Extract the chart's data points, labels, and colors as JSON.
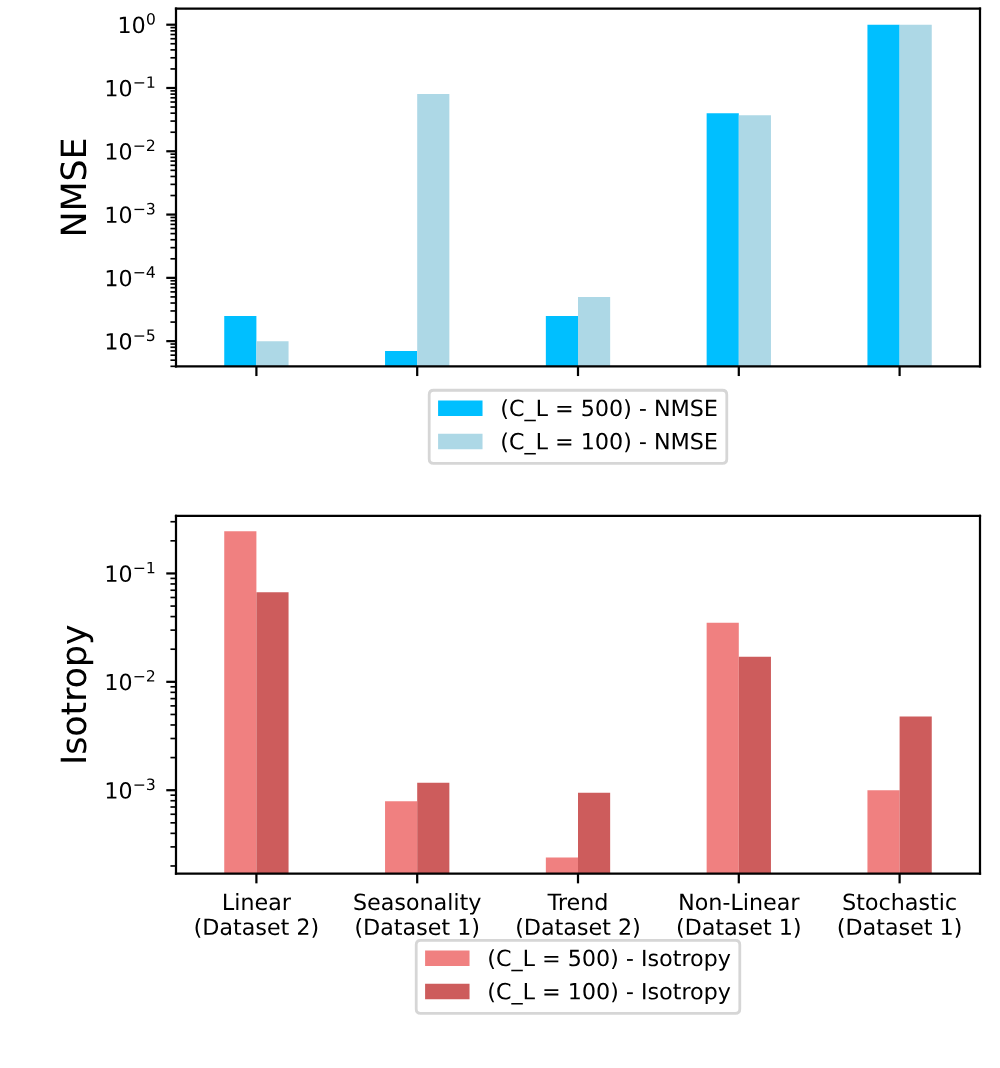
{
  "chart_data": [
    {
      "type": "bar",
      "ylabel": "NMSE",
      "categories": [
        null,
        null,
        null,
        null,
        null
      ],
      "log": "y",
      "ylim": [
        4e-06,
        1.8
      ],
      "yticks": [
        {
          "value": 1e-05,
          "label": "10$^{−5}$"
        },
        {
          "value": 0.0001,
          "label": "10$^{−4}$"
        },
        {
          "value": 0.001,
          "label": "10$^{−3}$"
        },
        {
          "value": 0.01,
          "label": "10$^{−2}$"
        },
        {
          "value": 0.1,
          "label": "10$^{−1}$"
        },
        {
          "value": 1,
          "label": "10$^{0}$"
        }
      ],
      "tick_labels": "y",
      "legend": "bottom",
      "grid": false,
      "series": [
        {
          "name": "(C_L = 500) - NMSE",
          "color": "#00bfff",
          "values": [
            2.5e-05,
            7e-06,
            2.5e-05,
            0.04,
            1.0
          ]
        },
        {
          "name": "(C_L = 100) - NMSE",
          "color": "#add8e6",
          "values": [
            1e-05,
            0.08,
            5e-05,
            0.037,
            1.0
          ]
        }
      ]
    },
    {
      "type": "bar",
      "ylabel": "Isotropy",
      "categories": [
        "Linear\n(Dataset 2)",
        "Seasonality\n(Dataset 1)",
        "Trend\n(Dataset 2)",
        "Non-Linear\n(Dataset 1)",
        "Stochastic\n(Dataset 1)"
      ],
      "log": "y",
      "ylim": [
        0.00017,
        0.34
      ],
      "yticks": [
        {
          "value": 0.001,
          "label": "10$^{−3}$"
        },
        {
          "value": 0.01,
          "label": "10$^{−2}$"
        },
        {
          "value": 0.1,
          "label": "10$^{−1}$"
        }
      ],
      "legend": "bottom",
      "grid": false,
      "series": [
        {
          "name": "(C_L = 500) - Isotropy",
          "color": "#f08080",
          "values": [
            0.245,
            0.00079,
            0.00024,
            0.035,
            0.001
          ]
        },
        {
          "name": "(C_L = 100) - Isotropy",
          "color": "#cd5c5c",
          "values": [
            0.067,
            0.00117,
            0.00095,
            0.017,
            0.0048
          ]
        }
      ]
    }
  ]
}
